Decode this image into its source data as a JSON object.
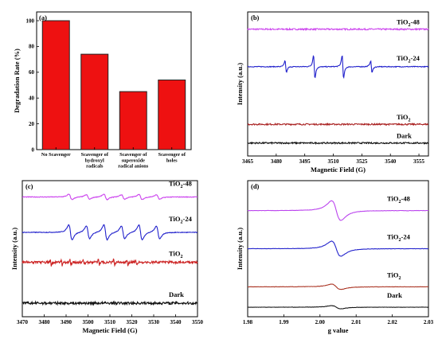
{
  "chart_data": [
    {
      "type": "bar",
      "panel_label": "(a)",
      "categories": [
        [
          "No Scavenger"
        ],
        [
          "Scavenger of",
          "hydroxyl",
          "radicals"
        ],
        [
          "Scavenger of",
          "superoxide",
          "radical anions"
        ],
        [
          "Scavenger of",
          "holes"
        ]
      ],
      "values": [
        100,
        74,
        45,
        54
      ],
      "ylabel": "Degradation Rate (%)",
      "ylim": [
        0,
        100
      ],
      "yticks": [
        "0",
        "20",
        "40",
        "60",
        "80",
        "100"
      ],
      "bar_color": "#ee1111"
    },
    {
      "type": "line",
      "panel_label": "(b)",
      "xlabel": "Magnetic Field (G)",
      "ylabel": "Intensity (a.u.)",
      "xlim": [
        3465,
        3560
      ],
      "xticks": [
        "3465",
        "3480",
        "3495",
        "3510",
        "3525",
        "3540",
        "3555"
      ],
      "series": [
        {
          "name": "TiO₂-48",
          "color": "#cc44ee",
          "baseline": 0.88,
          "shape": "noise"
        },
        {
          "name": "TiO₂-24",
          "color": "#2222cc",
          "baseline": 0.62,
          "shape": "dmpo_oh",
          "peaks": [
            3485,
            3500,
            3515,
            3530
          ],
          "ratios": [
            1,
            2,
            2,
            1
          ]
        },
        {
          "name": "TiO₂",
          "color": "#aa2222",
          "baseline": 0.22,
          "shape": "noise"
        },
        {
          "name": "Dark",
          "color": "#111111",
          "baseline": 0.09,
          "shape": "noise"
        }
      ]
    },
    {
      "type": "line",
      "panel_label": "(c)",
      "xlabel": "Magnetic Field (G)",
      "ylabel": "Intensity (a.u.)",
      "xlim": [
        3470,
        3550
      ],
      "xticks": [
        "3470",
        "3480",
        "3490",
        "3500",
        "3510",
        "3520",
        "3530",
        "3540",
        "3550"
      ],
      "series": [
        {
          "name": "TiO₂-48",
          "color": "#cc44ee",
          "baseline": 0.88,
          "shape": "dmpo_ooh",
          "amp": 0.06
        },
        {
          "name": "TiO₂-24",
          "color": "#2222cc",
          "baseline": 0.62,
          "shape": "dmpo_ooh",
          "amp": 0.17
        },
        {
          "name": "TiO₂",
          "color": "#cc2222",
          "baseline": 0.4,
          "shape": "noisy",
          "amp": 0.04
        },
        {
          "name": "Dark",
          "color": "#111111",
          "baseline": 0.1,
          "shape": "noise"
        }
      ]
    },
    {
      "type": "line",
      "panel_label": "(d)",
      "xlabel": "g value",
      "ylabel": "Intensity (a.u.)",
      "xlim": [
        1.98,
        2.03
      ],
      "xticks": [
        "1.98",
        "1.99",
        "2.00",
        "2.01",
        "2.02",
        "2.03"
      ],
      "series": [
        {
          "name": "TiO₂-48",
          "color": "#bb44ee",
          "baseline": 0.78,
          "amp": 0.22,
          "center": 2.004
        },
        {
          "name": "TiO₂-24",
          "color": "#2222cc",
          "baseline": 0.5,
          "amp": 0.17,
          "center": 2.004
        },
        {
          "name": "TiO₂",
          "color": "#aa3322",
          "baseline": 0.22,
          "amp": 0.06,
          "center": 2.004
        },
        {
          "name": "Dark",
          "color": "#111111",
          "baseline": 0.07,
          "amp": 0.035,
          "center": 2.004
        }
      ]
    }
  ]
}
